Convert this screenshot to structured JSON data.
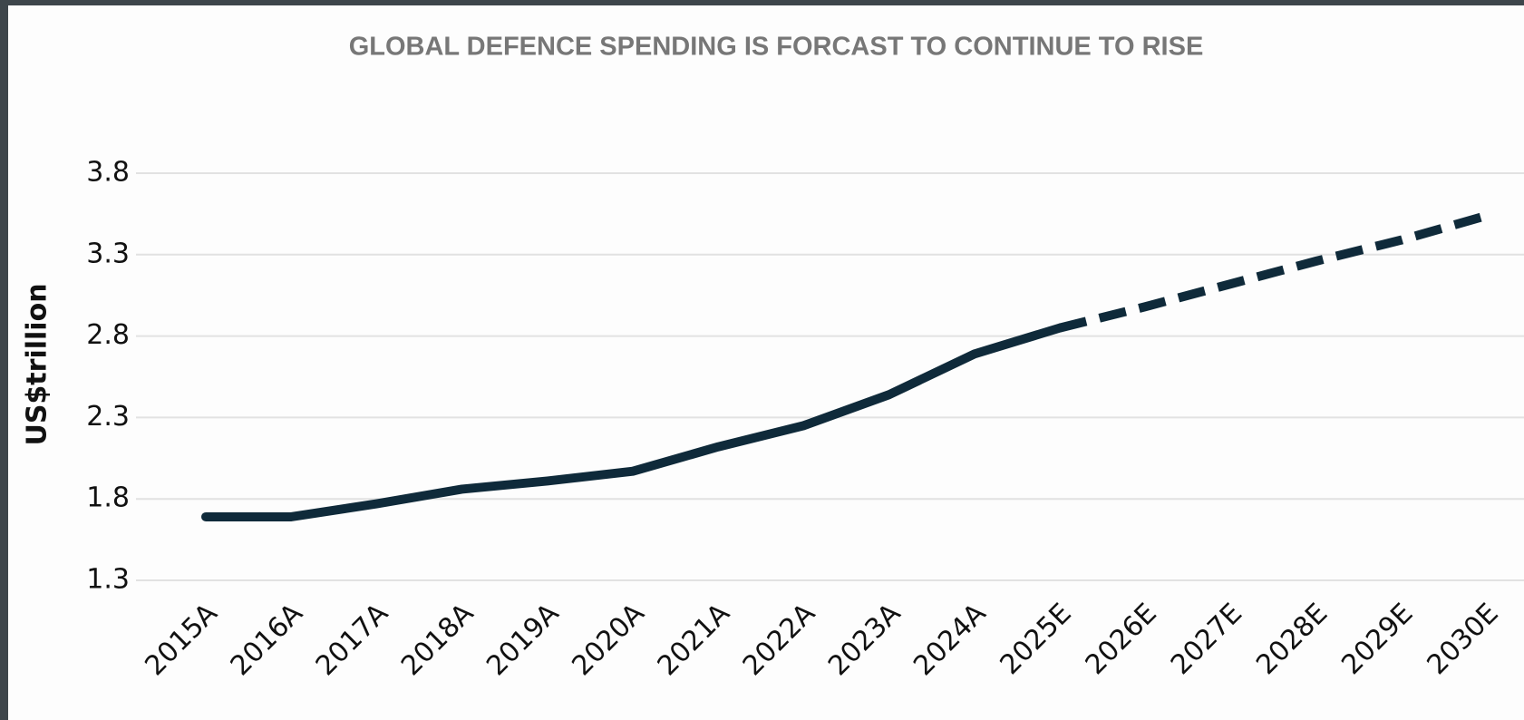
{
  "chart_data": {
    "type": "line",
    "title": "GLOBAL DEFENCE SPENDING IS FORCAST TO CONTINUE TO RISE",
    "y_label": "US$trillion",
    "categories": [
      "2015A",
      "2016A",
      "2017A",
      "2018A",
      "2019A",
      "2020A",
      "2021A",
      "2022A",
      "2023A",
      "2024A",
      "2025E",
      "2026E",
      "2027E",
      "2028E",
      "2029E",
      "2030E"
    ],
    "series": [
      {
        "color": "#0f2a3a",
        "dashed": false,
        "values": [
          1.69,
          1.69,
          1.77,
          1.86,
          1.91,
          1.97,
          2.12,
          2.25,
          2.44,
          2.69,
          2.85,
          null,
          null,
          null,
          null,
          null
        ]
      },
      {
        "color": "#0f2a3a",
        "dashed": true,
        "values": [
          null,
          null,
          null,
          null,
          null,
          null,
          null,
          null,
          null,
          null,
          2.85,
          2.98,
          3.12,
          3.26,
          3.39,
          3.54
        ]
      }
    ],
    "ylim": [
      1.3,
      3.8
    ],
    "yticks": [
      1.3,
      1.8,
      2.3,
      2.8,
      3.3,
      3.8
    ],
    "grid": true
  }
}
